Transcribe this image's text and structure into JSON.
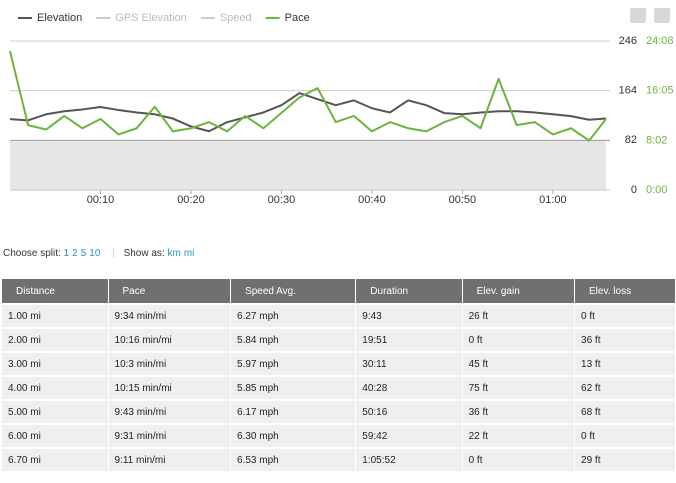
{
  "chart_data": {
    "type": "line",
    "x": [
      0,
      2,
      4,
      6,
      8,
      10,
      12,
      14,
      16,
      18,
      20,
      22,
      24,
      26,
      28,
      30,
      32,
      34,
      36,
      38,
      40,
      42,
      44,
      46,
      48,
      50,
      52,
      54,
      56,
      58,
      60,
      62,
      64,
      65.87
    ],
    "xlim": [
      0,
      65.87
    ],
    "xticks": [
      {
        "value": 10,
        "label": "00:10"
      },
      {
        "value": 20,
        "label": "00:20"
      },
      {
        "value": 30,
        "label": "00:30"
      },
      {
        "value": 40,
        "label": "00:40"
      },
      {
        "value": 50,
        "label": "00:50"
      },
      {
        "value": 60,
        "label": "01:00"
      }
    ],
    "ylim": [
      0,
      246
    ],
    "yticks": [
      0,
      82,
      164,
      246
    ],
    "y2lim": [
      0,
      24.133
    ],
    "y2ticks": [
      {
        "value": 0,
        "label": "0:00"
      },
      {
        "value": 8.033,
        "label": "8:02"
      },
      {
        "value": 16.083,
        "label": "16:05"
      },
      {
        "value": 24.133,
        "label": "24:08"
      }
    ],
    "grid": true,
    "series": [
      {
        "name": "Elevation",
        "color": "#555555",
        "visible": true,
        "values": [
          117,
          115,
          125,
          130,
          133,
          137,
          132,
          128,
          125,
          118,
          105,
          97,
          112,
          120,
          128,
          140,
          160,
          150,
          140,
          148,
          135,
          128,
          148,
          140,
          127,
          125,
          128,
          130,
          130,
          128,
          125,
          122,
          116,
          118
        ]
      },
      {
        "name": "GPS Elevation",
        "color": "#cccccc",
        "visible": false
      },
      {
        "name": "Speed",
        "color": "#cccccc",
        "visible": false
      },
      {
        "name": "Pace",
        "color": "#6db33f",
        "axis": "y2",
        "visible": true,
        "values": [
          22.5,
          10.5,
          9.8,
          12,
          10,
          11.5,
          9,
          10,
          13.5,
          9.5,
          10,
          11,
          9.5,
          12,
          10,
          12.5,
          15,
          16.5,
          11,
          12,
          9.5,
          11,
          10,
          9.5,
          11,
          12,
          10,
          18,
          10.5,
          11,
          9,
          10,
          8,
          11.5
        ]
      }
    ]
  },
  "split": {
    "label": "Choose split:",
    "options": [
      "1",
      "2",
      "5",
      "10"
    ],
    "show_label": "Show as:",
    "units": [
      "km",
      "mi"
    ]
  },
  "table": {
    "columns": [
      "Distance",
      "Pace",
      "Speed Avg.",
      "Duration",
      "Elev. gain",
      "Elev. loss"
    ],
    "rows": [
      [
        "1.00 mi",
        "9:34 min/mi",
        "6.27 mph",
        "9:43",
        "26 ft",
        "0 ft"
      ],
      [
        "2.00 mi",
        "10:16 min/mi",
        "5.84 mph",
        "19:51",
        "0 ft",
        "36 ft"
      ],
      [
        "3.00 mi",
        "10:3 min/mi",
        "5.97 mph",
        "30:11",
        "45 ft",
        "13 ft"
      ],
      [
        "4.00 mi",
        "10:15 min/mi",
        "5.85 mph",
        "40:28",
        "75 ft",
        "62 ft"
      ],
      [
        "5.00 mi",
        "9:43 min/mi",
        "6.17 mph",
        "50:16",
        "36 ft",
        "68 ft"
      ],
      [
        "6.00 mi",
        "9:31 min/mi",
        "6.30 mph",
        "59:42",
        "22 ft",
        "0 ft"
      ],
      [
        "6.70 mi",
        "9:11 min/mi",
        "6.53 mph",
        "1:05:52",
        "0 ft",
        "29 ft"
      ]
    ]
  }
}
